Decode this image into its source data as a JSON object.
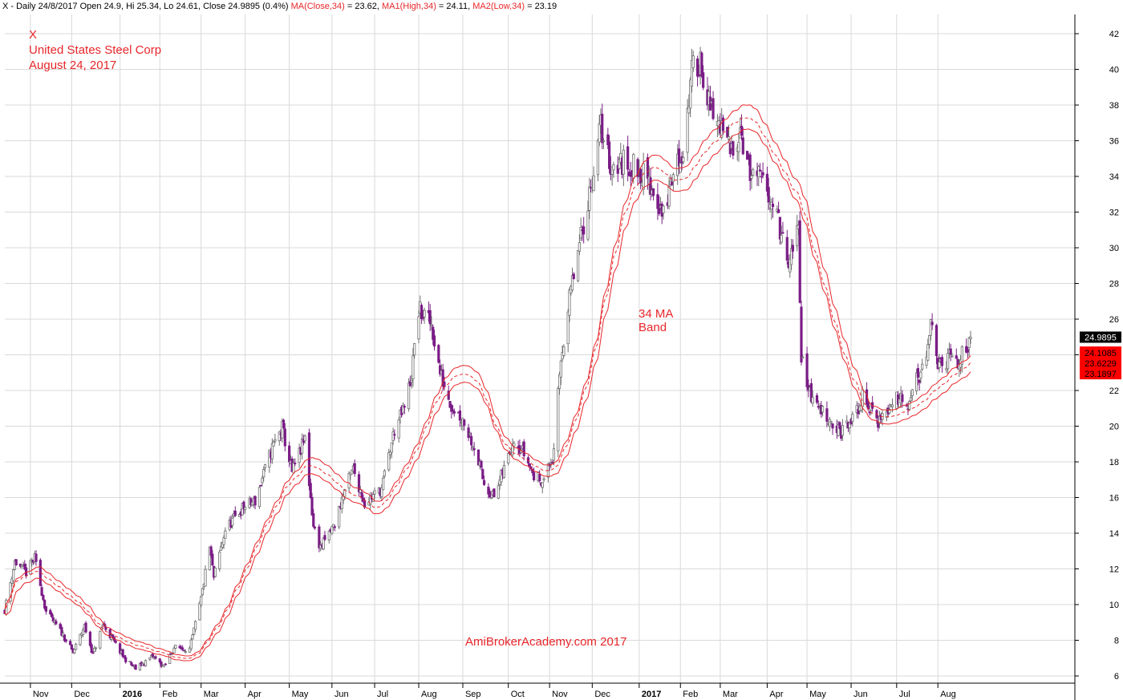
{
  "header": {
    "prefix": "X - Daily 24/8/2017 Open 24.9, Hi 25.34, Lo 24.61, Close 24.9895 (0.4%) ",
    "ma_label": "MA(Close,34)",
    "ma_value": " = 23.62, ",
    "ma1_label": "MA1(High,34)",
    "ma1_value": " = 24.11, ",
    "ma2_label": "MA2(Low,34)",
    "ma2_value": " = 23.19"
  },
  "annotations": {
    "ticker": "X",
    "company": "United States Steel Corp",
    "date": "August 24, 2017",
    "band_line1": "34 MA",
    "band_line2": "Band",
    "watermark": "AmiBrokerAcademy.com  2017"
  },
  "price_tags": {
    "last": "24.9895",
    "ma_high": "24.1085",
    "ma_close": "23.6229",
    "ma_low": "23.1897"
  },
  "colors": {
    "up_candle": "#6e6e6e",
    "down_candle": "#7a1d86",
    "ma_band": "#e8262a",
    "grid": "#d9d9d9",
    "annotation": "#e8262a",
    "last_tag": "#000000",
    "ma_tags": "#ff0000"
  },
  "chart_data": {
    "type": "line",
    "title": "",
    "xlabel": "",
    "ylabel": "",
    "ylim": [
      6,
      42
    ],
    "y_ticks": [
      6,
      8,
      10,
      12,
      14,
      16,
      18,
      20,
      22,
      24,
      26,
      28,
      30,
      32,
      34,
      36,
      38,
      40,
      42
    ],
    "grid": true,
    "x_ticks": [
      {
        "label": "Nov",
        "date": "2015-11-02"
      },
      {
        "label": "Dec",
        "date": "2015-12-01"
      },
      {
        "label": "2016",
        "date": "2016-01-04",
        "bold": true
      },
      {
        "label": "Feb",
        "date": "2016-02-01"
      },
      {
        "label": "Mar",
        "date": "2016-03-01"
      },
      {
        "label": "Apr",
        "date": "2016-04-01"
      },
      {
        "label": "May",
        "date": "2016-05-02"
      },
      {
        "label": "Jun",
        "date": "2016-06-01"
      },
      {
        "label": "Jul",
        "date": "2016-07-01"
      },
      {
        "label": "Aug",
        "date": "2016-08-01"
      },
      {
        "label": "Sep",
        "date": "2016-09-01"
      },
      {
        "label": "Oct",
        "date": "2016-10-03"
      },
      {
        "label": "Nov",
        "date": "2016-11-01"
      },
      {
        "label": "Dec",
        "date": "2016-12-01"
      },
      {
        "label": "2017",
        "date": "2017-01-03",
        "bold": true
      },
      {
        "label": "Feb",
        "date": "2017-02-01"
      },
      {
        "label": "Mar",
        "date": "2017-03-01"
      },
      {
        "label": "Apr",
        "date": "2017-04-03"
      },
      {
        "label": "May",
        "date": "2017-05-01"
      },
      {
        "label": "Jun",
        "date": "2017-06-01"
      },
      {
        "label": "Jul",
        "date": "2017-07-03"
      },
      {
        "label": "Aug",
        "date": "2017-08-01"
      }
    ],
    "series": [
      {
        "style": "candlestick",
        "x_start": "2015-10-15",
        "x_end": "2017-08-24",
        "close_path": [
          {
            "date": "2015-10-15",
            "close": 9.7
          },
          {
            "date": "2015-10-22",
            "close": 12.4
          },
          {
            "date": "2015-10-30",
            "close": 11.8
          },
          {
            "date": "2015-11-05",
            "close": 12.6
          },
          {
            "date": "2015-11-13",
            "close": 9.6
          },
          {
            "date": "2015-11-25",
            "close": 8.3
          },
          {
            "date": "2015-12-02",
            "close": 7.3
          },
          {
            "date": "2015-12-10",
            "close": 8.8
          },
          {
            "date": "2015-12-16",
            "close": 7.2
          },
          {
            "date": "2015-12-23",
            "close": 8.9
          },
          {
            "date": "2016-01-07",
            "close": 7.0
          },
          {
            "date": "2016-01-15",
            "close": 6.4
          },
          {
            "date": "2016-01-27",
            "close": 7.1
          },
          {
            "date": "2016-02-04",
            "close": 6.5
          },
          {
            "date": "2016-02-11",
            "close": 7.6
          },
          {
            "date": "2016-02-22",
            "close": 7.5
          },
          {
            "date": "2016-03-01",
            "close": 10.3
          },
          {
            "date": "2016-03-07",
            "close": 13.2
          },
          {
            "date": "2016-03-10",
            "close": 11.5
          },
          {
            "date": "2016-03-18",
            "close": 14.2
          },
          {
            "date": "2016-03-30",
            "close": 15.4
          },
          {
            "date": "2016-04-08",
            "close": 15.8
          },
          {
            "date": "2016-04-20",
            "close": 18.8
          },
          {
            "date": "2016-04-27",
            "close": 19.9
          },
          {
            "date": "2016-05-04",
            "close": 17.4
          },
          {
            "date": "2016-05-13",
            "close": 19.3
          },
          {
            "date": "2016-05-19",
            "close": 14.4
          },
          {
            "date": "2016-05-24",
            "close": 13.2
          },
          {
            "date": "2016-06-03",
            "close": 14.5
          },
          {
            "date": "2016-06-09",
            "close": 16.2
          },
          {
            "date": "2016-06-16",
            "close": 17.6
          },
          {
            "date": "2016-06-24",
            "close": 15.7
          },
          {
            "date": "2016-07-06",
            "close": 16.5
          },
          {
            "date": "2016-07-15",
            "close": 19.8
          },
          {
            "date": "2016-07-22",
            "close": 21.0
          },
          {
            "date": "2016-07-27",
            "close": 22.9
          },
          {
            "date": "2016-08-01",
            "close": 26.5
          },
          {
            "date": "2016-08-10",
            "close": 25.7
          },
          {
            "date": "2016-08-16",
            "close": 23.0
          },
          {
            "date": "2016-08-24",
            "close": 21.2
          },
          {
            "date": "2016-09-01",
            "close": 20.4
          },
          {
            "date": "2016-09-09",
            "close": 18.9
          },
          {
            "date": "2016-09-16",
            "close": 16.8
          },
          {
            "date": "2016-09-23",
            "close": 16.0
          },
          {
            "date": "2016-09-30",
            "close": 17.6
          },
          {
            "date": "2016-10-07",
            "close": 19.4
          },
          {
            "date": "2016-10-14",
            "close": 18.5
          },
          {
            "date": "2016-10-21",
            "close": 17.2
          },
          {
            "date": "2016-10-28",
            "close": 17.0
          },
          {
            "date": "2016-11-04",
            "close": 18.4
          },
          {
            "date": "2016-11-09",
            "close": 23.8
          },
          {
            "date": "2016-11-16",
            "close": 27.6
          },
          {
            "date": "2016-11-23",
            "close": 30.5
          },
          {
            "date": "2016-11-30",
            "close": 33.5
          },
          {
            "date": "2016-12-07",
            "close": 36.8
          },
          {
            "date": "2016-12-14",
            "close": 34.6
          },
          {
            "date": "2016-12-23",
            "close": 34.8
          },
          {
            "date": "2017-01-04",
            "close": 34.3
          },
          {
            "date": "2017-01-13",
            "close": 33.2
          },
          {
            "date": "2017-01-20",
            "close": 31.8
          },
          {
            "date": "2017-01-27",
            "close": 34.2
          },
          {
            "date": "2017-02-03",
            "close": 35.5
          },
          {
            "date": "2017-02-09",
            "close": 39.8
          },
          {
            "date": "2017-02-15",
            "close": 40.6
          },
          {
            "date": "2017-02-22",
            "close": 37.6
          },
          {
            "date": "2017-03-01",
            "close": 36.8
          },
          {
            "date": "2017-03-08",
            "close": 35.4
          },
          {
            "date": "2017-03-15",
            "close": 36.8
          },
          {
            "date": "2017-03-22",
            "close": 34.0
          },
          {
            "date": "2017-03-29",
            "close": 33.8
          },
          {
            "date": "2017-04-05",
            "close": 33.0
          },
          {
            "date": "2017-04-11",
            "close": 31.4
          },
          {
            "date": "2017-04-18",
            "close": 28.8
          },
          {
            "date": "2017-04-25",
            "close": 31.2
          },
          {
            "date": "2017-04-27",
            "close": 23.8
          },
          {
            "date": "2017-05-05",
            "close": 21.4
          },
          {
            "date": "2017-05-15",
            "close": 20.6
          },
          {
            "date": "2017-05-24",
            "close": 19.6
          },
          {
            "date": "2017-06-02",
            "close": 20.3
          },
          {
            "date": "2017-06-09",
            "close": 21.6
          },
          {
            "date": "2017-06-15",
            "close": 20.9
          },
          {
            "date": "2017-06-20",
            "close": 20.3
          },
          {
            "date": "2017-06-28",
            "close": 21.0
          },
          {
            "date": "2017-07-05",
            "close": 21.8
          },
          {
            "date": "2017-07-11",
            "close": 21.4
          },
          {
            "date": "2017-07-17",
            "close": 22.6
          },
          {
            "date": "2017-07-24",
            "close": 23.4
          },
          {
            "date": "2017-07-27",
            "close": 26.0
          },
          {
            "date": "2017-08-02",
            "close": 23.2
          },
          {
            "date": "2017-08-09",
            "close": 23.8
          },
          {
            "date": "2017-08-16",
            "close": 23.6
          },
          {
            "date": "2017-08-24",
            "close": 24.9895
          }
        ]
      },
      {
        "name": "MA(Close,34)",
        "style": "dashed",
        "last_value": 23.6229
      },
      {
        "name": "MA1(High,34)",
        "style": "solid",
        "last_value": 24.1085
      },
      {
        "name": "MA2(Low,34)",
        "style": "solid",
        "last_value": 23.1897
      }
    ]
  }
}
